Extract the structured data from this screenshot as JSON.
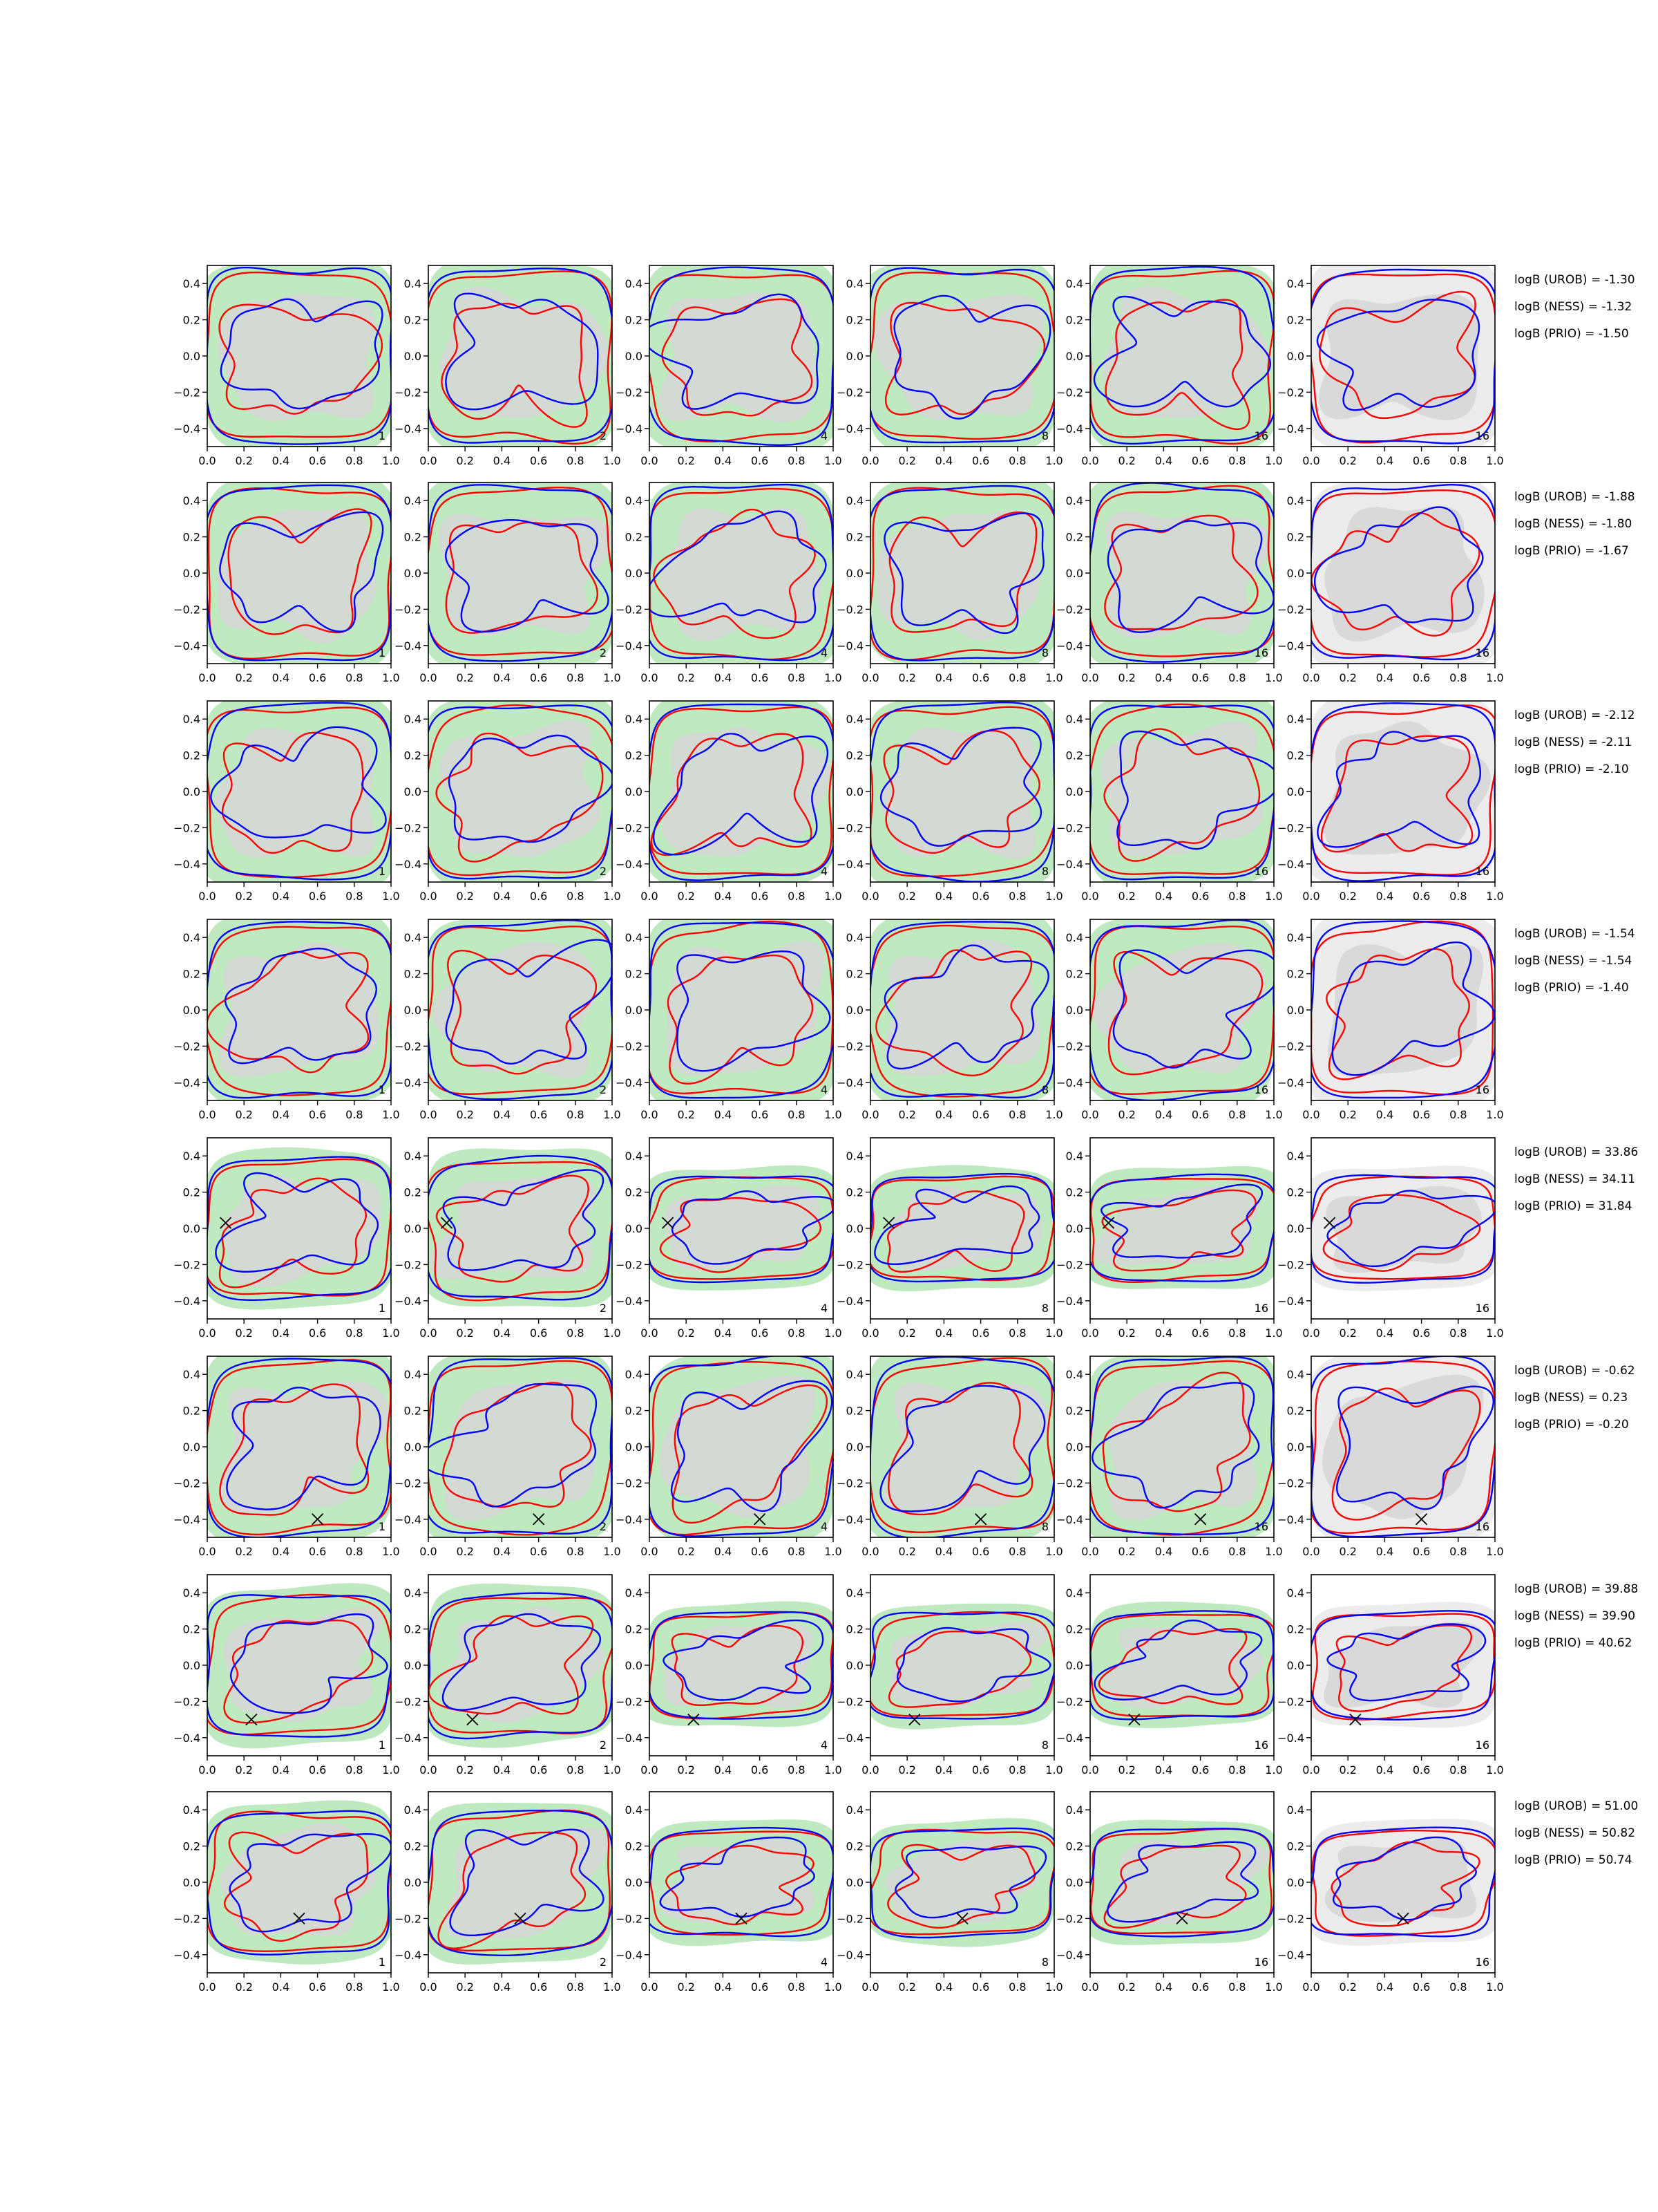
{
  "chart_data": {
    "type": "contour",
    "layout": {
      "rows": 8,
      "cols": 6
    },
    "xlim": [
      0.0,
      1.0
    ],
    "ylim": [
      -0.5,
      0.5
    ],
    "xticks": [
      "0.0",
      "0.2",
      "0.4",
      "0.6",
      "0.8",
      "1.0"
    ],
    "yticks": [
      "0.4",
      "0.2",
      "0.0",
      "−0.2",
      "−0.4"
    ],
    "panel_labels": [
      "1",
      "2",
      "4",
      "8",
      "16",
      "16"
    ],
    "colors": {
      "fill_light": "#bfeac0",
      "fill_grey": "#d6d6d6",
      "fill_pale": "#ececec",
      "red": "#ff0000",
      "blue": "#0000ff",
      "marker": "#000000"
    },
    "rows": [
      {
        "logB": [
          "logB (UROB) = -1.30",
          "logB (NESS) = -1.32",
          "logB (PRIO) = -1.50"
        ],
        "marker": null
      },
      {
        "logB": [
          "logB (UROB) = -1.88",
          "logB (NESS) = -1.80",
          "logB (PRIO) = -1.67"
        ],
        "marker": null
      },
      {
        "logB": [
          "logB (UROB) = -2.12",
          "logB (NESS) = -2.11",
          "logB (PRIO) = -2.10"
        ],
        "marker": null
      },
      {
        "logB": [
          "logB (UROB) = -1.54",
          "logB (NESS) = -1.54",
          "logB (PRIO) = -1.40"
        ],
        "marker": null
      },
      {
        "logB": [
          "logB (UROB) = 33.86",
          "logB (NESS) = 34.11",
          "logB (PRIO) = 31.84"
        ],
        "marker": [
          0.1,
          0.03
        ]
      },
      {
        "logB": [
          "logB (UROB) = -0.62",
          "logB (NESS) = 0.23",
          "logB (PRIO) = -0.20"
        ],
        "marker": [
          0.6,
          -0.4
        ]
      },
      {
        "logB": [
          "logB (UROB) = 39.88",
          "logB (NESS) = 39.90",
          "logB (PRIO) = 40.62"
        ],
        "marker": [
          0.24,
          -0.3
        ]
      },
      {
        "logB": [
          "logB (UROB) = 51.00",
          "logB (NESS) = 50.82",
          "logB (PRIO) = 50.74"
        ],
        "marker": [
          0.5,
          -0.2
        ]
      }
    ]
  }
}
